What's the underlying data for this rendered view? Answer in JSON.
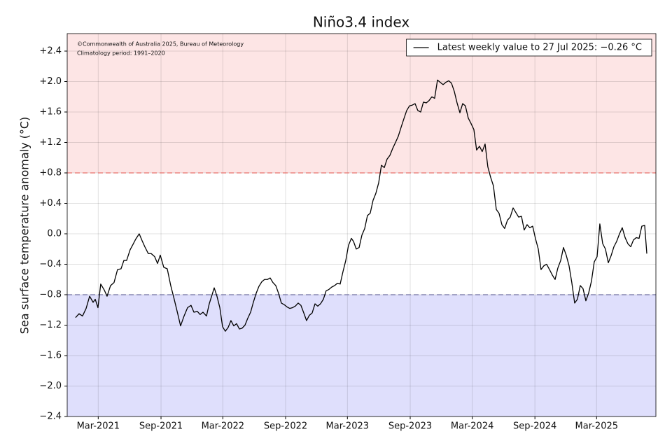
{
  "chart_data": {
    "type": "line",
    "title": "Niño3.4 index",
    "y_label": "Sea surface temperature anomaly (°C)",
    "annotations": [
      "©Commonwealth of Australia 2025, Bureau of Meteorology",
      "Climatology period: 1991–2020"
    ],
    "legend_position": "upper right",
    "grid": true,
    "xlim": [
      2020.913,
      2025.638
    ],
    "ylim": [
      -2.4,
      2.63
    ],
    "xticks": [
      {
        "value": 2021.162,
        "label": "Mar-2021"
      },
      {
        "value": 2021.666,
        "label": "Sep-2021"
      },
      {
        "value": 2022.162,
        "label": "Mar-2022"
      },
      {
        "value": 2022.666,
        "label": "Sep-2022"
      },
      {
        "value": 2023.162,
        "label": "Mar-2023"
      },
      {
        "value": 2023.666,
        "label": "Sep-2023"
      },
      {
        "value": 2024.164,
        "label": "Mar-2024"
      },
      {
        "value": 2024.667,
        "label": "Sep-2024"
      },
      {
        "value": 2025.162,
        "label": "Mar-2025"
      }
    ],
    "yticks": [
      {
        "value": 2.4,
        "label": "+2.4"
      },
      {
        "value": 2.0,
        "label": "+2.0"
      },
      {
        "value": 1.6,
        "label": "+1.6"
      },
      {
        "value": 1.2,
        "label": "+1.2"
      },
      {
        "value": 0.8,
        "label": "+0.8"
      },
      {
        "value": 0.4,
        "label": "+0.4"
      },
      {
        "value": 0,
        "label": "0.0"
      },
      {
        "value": -0.4,
        "label": "−0.4"
      },
      {
        "value": -0.8,
        "label": "−0.8"
      },
      {
        "value": -1.2,
        "label": "−1.2"
      },
      {
        "value": -1.6,
        "label": "−1.6"
      },
      {
        "value": -2.0,
        "label": "−2.0"
      },
      {
        "value": -2.4,
        "label": "−2.4"
      }
    ],
    "thresholds": [
      {
        "value": 0.8,
        "color": "#e8706a",
        "fill": "#fde5e5",
        "side": "above"
      },
      {
        "value": -0.8,
        "color": "#7070a0",
        "fill": "#dfdffc",
        "side": "below"
      }
    ],
    "x": [
      2020.98,
      2021.008,
      2021.036,
      2021.065,
      2021.093,
      2021.121,
      2021.138,
      2021.16,
      2021.182,
      2021.211,
      2021.233,
      2021.261,
      2021.289,
      2021.317,
      2021.345,
      2021.368,
      2021.39,
      2021.418,
      2021.441,
      2021.463,
      2021.491,
      2021.514,
      2021.536,
      2021.564,
      2021.587,
      2021.615,
      2021.638,
      2021.66,
      2021.688,
      2021.716,
      2021.744,
      2021.772,
      2021.8,
      2021.823,
      2021.851,
      2021.879,
      2021.907,
      2021.93,
      2021.958,
      2021.98,
      2022.003,
      2022.031,
      2022.053,
      2022.076,
      2022.093,
      2022.115,
      2022.138,
      2022.16,
      2022.182,
      2022.205,
      2022.227,
      2022.25,
      2022.272,
      2022.295,
      2022.317,
      2022.34,
      2022.362,
      2022.385,
      2022.407,
      2022.43,
      2022.452,
      2022.475,
      2022.497,
      2022.52,
      2022.542,
      2022.564,
      2022.587,
      2022.609,
      2022.632,
      2022.654,
      2022.677,
      2022.699,
      2022.722,
      2022.744,
      2022.767,
      2022.789,
      2022.812,
      2022.834,
      2022.857,
      2022.879,
      2022.902,
      2022.924,
      2022.946,
      2022.969,
      2022.991,
      2023.014,
      2023.036,
      2023.059,
      2023.081,
      2023.104,
      2023.126,
      2023.149,
      2023.171,
      2023.194,
      2023.211,
      2023.233,
      2023.256,
      2023.278,
      2023.301,
      2023.323,
      2023.345,
      2023.368,
      2023.39,
      2023.413,
      2023.435,
      2023.458,
      2023.48,
      2023.503,
      2023.525,
      2023.548,
      2023.57,
      2023.593,
      2023.615,
      2023.638,
      2023.66,
      2023.682,
      2023.705,
      2023.727,
      2023.75,
      2023.772,
      2023.795,
      2023.817,
      2023.84,
      2023.862,
      2023.885,
      2023.907,
      2023.93,
      2023.952,
      2023.975,
      2023.997,
      2024.02,
      2024.042,
      2024.065,
      2024.087,
      2024.109,
      2024.132,
      2024.154,
      2024.177,
      2024.199,
      2024.222,
      2024.244,
      2024.267,
      2024.289,
      2024.312,
      2024.334,
      2024.357,
      2024.379,
      2024.402,
      2024.424,
      2024.447,
      2024.469,
      2024.492,
      2024.514,
      2024.536,
      2024.559,
      2024.581,
      2024.604,
      2024.626,
      2024.649,
      2024.671,
      2024.694,
      2024.716,
      2024.739,
      2024.761,
      2024.784,
      2024.806,
      2024.829,
      2024.851,
      2024.874,
      2024.896,
      2024.918,
      2024.941,
      2024.963,
      2024.986,
      2025.008,
      2025.031,
      2025.053,
      2025.076,
      2025.098,
      2025.121,
      2025.143,
      2025.166,
      2025.188,
      2025.211,
      2025.233,
      2025.256,
      2025.278,
      2025.301,
      2025.323,
      2025.346,
      2025.368,
      2025.391,
      2025.413,
      2025.436,
      2025.458,
      2025.481,
      2025.503,
      2025.525,
      2025.548,
      2025.565
    ],
    "series": [
      {
        "name": "Latest weekly value to 27 Jul 2025: −0.26 °C",
        "color": "#000000",
        "values": [
          -1.1,
          -1.05,
          -1.08,
          -0.98,
          -0.82,
          -0.9,
          -0.86,
          -0.97,
          -0.66,
          -0.74,
          -0.82,
          -0.68,
          -0.64,
          -0.47,
          -0.46,
          -0.35,
          -0.35,
          -0.21,
          -0.14,
          -0.07,
          0.0,
          -0.09,
          -0.17,
          -0.26,
          -0.26,
          -0.3,
          -0.39,
          -0.28,
          -0.44,
          -0.46,
          -0.68,
          -0.86,
          -1.05,
          -1.21,
          -1.08,
          -0.97,
          -0.94,
          -1.03,
          -1.02,
          -1.06,
          -1.03,
          -1.08,
          -0.92,
          -0.8,
          -0.71,
          -0.82,
          -0.97,
          -1.22,
          -1.28,
          -1.23,
          -1.14,
          -1.21,
          -1.18,
          -1.25,
          -1.24,
          -1.2,
          -1.11,
          -1.03,
          -0.9,
          -0.78,
          -0.69,
          -0.63,
          -0.6,
          -0.6,
          -0.58,
          -0.64,
          -0.68,
          -0.78,
          -0.91,
          -0.93,
          -0.96,
          -0.98,
          -0.97,
          -0.95,
          -0.91,
          -0.94,
          -1.04,
          -1.14,
          -1.07,
          -1.04,
          -0.92,
          -0.95,
          -0.92,
          -0.86,
          -0.75,
          -0.73,
          -0.7,
          -0.68,
          -0.65,
          -0.66,
          -0.5,
          -0.35,
          -0.15,
          -0.06,
          -0.1,
          -0.2,
          -0.18,
          -0.02,
          0.07,
          0.24,
          0.27,
          0.44,
          0.53,
          0.67,
          0.9,
          0.87,
          0.98,
          1.03,
          1.12,
          1.2,
          1.28,
          1.4,
          1.51,
          1.62,
          1.68,
          1.69,
          1.71,
          1.62,
          1.6,
          1.73,
          1.72,
          1.75,
          1.8,
          1.78,
          2.02,
          1.99,
          1.96,
          1.99,
          2.01,
          1.98,
          1.87,
          1.72,
          1.59,
          1.71,
          1.68,
          1.52,
          1.45,
          1.37,
          1.1,
          1.15,
          1.08,
          1.18,
          0.88,
          0.74,
          0.63,
          0.32,
          0.27,
          0.12,
          0.07,
          0.18,
          0.22,
          0.34,
          0.28,
          0.22,
          0.23,
          0.05,
          0.12,
          0.08,
          0.1,
          -0.06,
          -0.2,
          -0.47,
          -0.42,
          -0.4,
          -0.47,
          -0.54,
          -0.6,
          -0.45,
          -0.35,
          -0.18,
          -0.28,
          -0.42,
          -0.64,
          -0.91,
          -0.86,
          -0.68,
          -0.72,
          -0.88,
          -0.78,
          -0.62,
          -0.37,
          -0.3,
          0.13,
          -0.13,
          -0.2,
          -0.38,
          -0.29,
          -0.17,
          -0.1,
          0.0,
          0.08,
          -0.05,
          -0.13,
          -0.17,
          -0.08,
          -0.05,
          -0.06,
          0.1,
          0.11,
          -0.26
        ]
      }
    ]
  }
}
